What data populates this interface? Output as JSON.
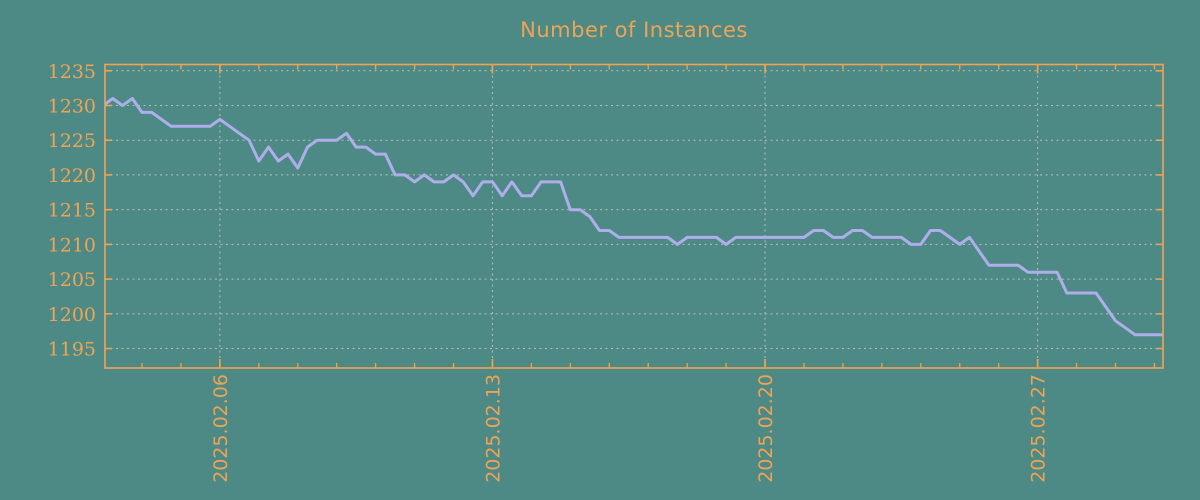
{
  "title": "Number of Instances",
  "colors": {
    "background": "#4e8a85",
    "accent_orange": "#f0a355",
    "line": "#aeaeea",
    "grid": "#cfc6c0"
  },
  "chart_data": {
    "type": "line",
    "title": "Number of Instances",
    "grid": true,
    "legend": false,
    "x_axis": {
      "unit": "days since 2025-02-03 00:00",
      "xlim": [
        0.05,
        27.22
      ],
      "major_ticks": [
        {
          "day": 3,
          "label": "2025.02.06"
        },
        {
          "day": 10,
          "label": "2025.02.13"
        },
        {
          "day": 17,
          "label": "2025.02.20"
        },
        {
          "day": 24,
          "label": "2025.02.27"
        }
      ],
      "minor_tick_step_days": 1
    },
    "y_axis": {
      "ylim": [
        1192.2,
        1235.9
      ],
      "ticks": [
        1195,
        1200,
        1205,
        1210,
        1215,
        1220,
        1225,
        1230,
        1235
      ]
    },
    "series": [
      {
        "name": "instances",
        "x_start_day": 0,
        "x_step_days": 0.25,
        "values": [
          1230,
          1231,
          1230,
          1231,
          1229,
          1229,
          1228,
          1227,
          1227,
          1227,
          1227,
          1227,
          1228,
          1227,
          1226,
          1225,
          1222,
          1224,
          1222,
          1223,
          1221,
          1224,
          1225,
          1225,
          1225,
          1226,
          1224,
          1224,
          1223,
          1223,
          1220,
          1220,
          1219,
          1220,
          1219,
          1219,
          1220,
          1219,
          1217,
          1219,
          1219,
          1217,
          1219,
          1217,
          1217,
          1219,
          1219,
          1219,
          1215,
          1215,
          1214,
          1212,
          1212,
          1211,
          1211,
          1211,
          1211,
          1211,
          1211,
          1210,
          1211,
          1211,
          1211,
          1211,
          1210,
          1211,
          1211,
          1211,
          1211,
          1211,
          1211,
          1211,
          1211,
          1212,
          1212,
          1211,
          1211,
          1212,
          1212,
          1211,
          1211,
          1211,
          1211,
          1210,
          1210,
          1212,
          1212,
          1211,
          1210,
          1211,
          1209,
          1207,
          1207,
          1207,
          1207,
          1206,
          1206,
          1206,
          1206,
          1203,
          1203,
          1203,
          1203,
          1201,
          1199,
          1198,
          1197,
          1197,
          1197,
          1197
        ]
      }
    ]
  }
}
